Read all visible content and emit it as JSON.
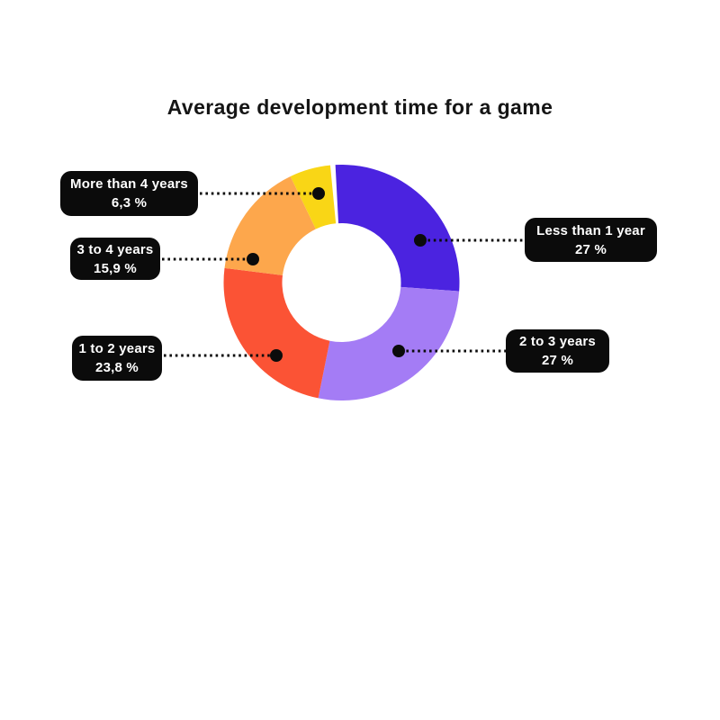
{
  "page": {
    "background": "#ffffff",
    "text_color": "#151515"
  },
  "chart_data": {
    "type": "pie",
    "variant": "donut",
    "title": "Average development time for a game",
    "legend_position": "callout-labels",
    "total": 100,
    "callout_style": {
      "background": "#0b0b0b",
      "text": "#ffffff",
      "connector": "dotted"
    },
    "segments": [
      {
        "label": "Less than 1 year",
        "value": 27,
        "display": "27 %",
        "color": "#4B23E0"
      },
      {
        "label": "2 to 3 years",
        "value": 27,
        "display": "27 %",
        "color": "#A47CF5"
      },
      {
        "label": "1 to 2 years",
        "value": 23.8,
        "display": "23,8 %",
        "color": "#FB5335"
      },
      {
        "label": "3 to 4 years",
        "value": 15.9,
        "display": "15,9 %",
        "color": "#FDA74C"
      },
      {
        "label": "More than 4 years",
        "value": 6.3,
        "display": "6,3 %",
        "color": "#F9D616"
      }
    ]
  }
}
